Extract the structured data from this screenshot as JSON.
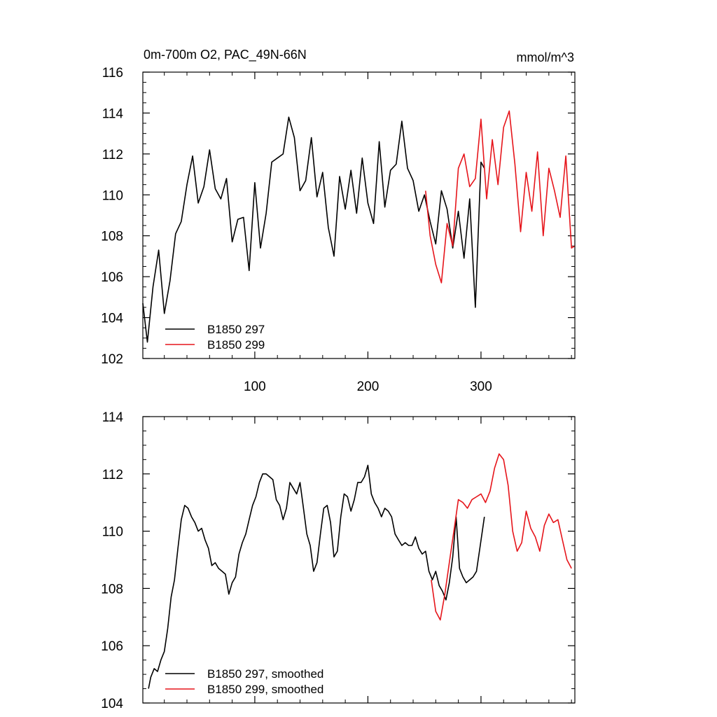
{
  "chart_data": [
    {
      "type": "line",
      "title": "0m-700m O2, PAC_49N-66N",
      "units": "mmol/m^3",
      "xlabel": "",
      "ylabel": "",
      "xlim": [
        1,
        383
      ],
      "ylim": [
        102,
        116
      ],
      "xticks": [
        100,
        200,
        300
      ],
      "yticks": [
        102,
        104,
        106,
        108,
        110,
        112,
        114,
        116
      ],
      "legend_position": "bottom-left",
      "series": [
        {
          "name": "B1850 297",
          "color": "#000000",
          "x": [
            1,
            5,
            10,
            15,
            20,
            25,
            30,
            35,
            40,
            45,
            50,
            55,
            60,
            65,
            70,
            75,
            80,
            85,
            90,
            95,
            100,
            105,
            110,
            115,
            120,
            125,
            130,
            135,
            140,
            145,
            150,
            155,
            160,
            165,
            170,
            175,
            180,
            185,
            190,
            195,
            200,
            205,
            210,
            215,
            220,
            225,
            230,
            235,
            240,
            245,
            250,
            255,
            260,
            265,
            270,
            275,
            280,
            285,
            290,
            295,
            300,
            303
          ],
          "values": [
            104.7,
            102.8,
            105.5,
            107.3,
            104.2,
            105.8,
            108.1,
            108.7,
            110.5,
            111.9,
            109.6,
            110.4,
            112.2,
            110.3,
            109.8,
            110.8,
            107.7,
            108.8,
            108.9,
            106.3,
            110.6,
            107.4,
            109.1,
            111.6,
            111.8,
            112.0,
            113.8,
            112.8,
            110.2,
            110.7,
            112.8,
            109.9,
            111.1,
            108.4,
            107.0,
            110.9,
            109.3,
            111.2,
            109.1,
            111.8,
            109.6,
            108.6,
            112.6,
            109.4,
            111.2,
            111.5,
            113.6,
            111.3,
            110.7,
            109.2,
            110.0,
            108.7,
            107.6,
            110.2,
            109.3,
            107.4,
            109.2,
            106.9,
            109.8,
            104.5,
            111.6,
            111.3
          ]
        },
        {
          "name": "B1850 299",
          "color": "#e6151b",
          "x": [
            251,
            255,
            260,
            265,
            270,
            275,
            280,
            285,
            290,
            295,
            300,
            305,
            310,
            315,
            320,
            325,
            330,
            335,
            340,
            345,
            350,
            355,
            360,
            365,
            370,
            375,
            380,
            383
          ],
          "values": [
            110.2,
            108.0,
            106.6,
            105.7,
            108.6,
            107.5,
            111.3,
            112.0,
            110.4,
            110.8,
            113.7,
            109.8,
            112.7,
            110.5,
            113.3,
            114.1,
            111.5,
            108.2,
            111.1,
            109.2,
            112.1,
            108.0,
            111.3,
            110.2,
            108.9,
            111.9,
            107.4,
            107.5
          ]
        }
      ]
    },
    {
      "type": "line",
      "title": "",
      "xlabel": "",
      "ylabel": "",
      "xlim": [
        1,
        383
      ],
      "ylim": [
        104,
        114
      ],
      "xticks": [
        100,
        200,
        300
      ],
      "yticks": [
        104,
        106,
        108,
        110,
        112,
        114
      ],
      "legend_position": "bottom-left",
      "series": [
        {
          "name": "B1850 297, smoothed",
          "color": "#000000",
          "x": [
            6,
            8,
            11,
            14,
            17,
            20,
            23,
            26,
            29,
            32,
            35,
            38,
            41,
            44,
            47,
            50,
            53,
            56,
            59,
            62,
            65,
            68,
            71,
            74,
            77,
            80,
            83,
            86,
            89,
            92,
            95,
            98,
            101,
            104,
            107,
            110,
            113,
            116,
            119,
            122,
            125,
            128,
            131,
            134,
            137,
            140,
            143,
            146,
            149,
            152,
            155,
            158,
            161,
            164,
            167,
            170,
            173,
            176,
            179,
            182,
            185,
            188,
            191,
            194,
            197,
            200,
            203,
            206,
            209,
            212,
            215,
            218,
            221,
            224,
            227,
            230,
            233,
            236,
            239,
            242,
            245,
            248,
            251,
            254,
            257,
            260,
            263,
            266,
            269,
            272,
            275,
            278,
            281,
            284,
            287,
            290,
            293,
            296,
            299,
            303
          ],
          "values": [
            104.5,
            104.9,
            105.2,
            105.1,
            105.5,
            105.8,
            106.6,
            107.7,
            108.3,
            109.4,
            110.4,
            110.9,
            110.8,
            110.5,
            110.3,
            110.0,
            110.1,
            109.7,
            109.4,
            108.8,
            108.9,
            108.7,
            108.6,
            108.5,
            107.8,
            108.2,
            108.4,
            109.2,
            109.6,
            109.9,
            110.4,
            110.9,
            111.2,
            111.7,
            112.0,
            112.0,
            111.9,
            111.8,
            111.1,
            110.9,
            110.4,
            110.8,
            111.7,
            111.5,
            111.3,
            111.7,
            110.8,
            109.9,
            109.5,
            108.6,
            108.9,
            109.9,
            110.8,
            110.9,
            110.3,
            109.1,
            109.3,
            110.5,
            111.3,
            111.2,
            110.7,
            111.1,
            111.7,
            111.7,
            111.9,
            112.3,
            111.3,
            111.0,
            110.8,
            110.5,
            110.8,
            110.7,
            110.5,
            109.9,
            109.7,
            109.5,
            109.6,
            109.5,
            109.5,
            109.8,
            109.4,
            109.2,
            109.3,
            108.6,
            108.3,
            108.6,
            108.1,
            107.9,
            107.6,
            108.2,
            109.1,
            110.5,
            108.7,
            108.4,
            108.2,
            108.3,
            108.4,
            108.6,
            109.4,
            110.5
          ]
        },
        {
          "name": "B1850 299, smoothed",
          "color": "#e6151b",
          "x": [
            256,
            260,
            264,
            268,
            272,
            276,
            280,
            284,
            288,
            292,
            296,
            300,
            304,
            308,
            312,
            316,
            320,
            324,
            328,
            332,
            336,
            340,
            344,
            348,
            352,
            356,
            360,
            364,
            368,
            372,
            376,
            380
          ],
          "values": [
            108.3,
            107.2,
            106.9,
            107.8,
            108.9,
            110.0,
            111.1,
            111.0,
            110.8,
            111.1,
            111.2,
            111.3,
            111.0,
            111.4,
            112.2,
            112.7,
            112.5,
            111.6,
            110.0,
            109.3,
            109.6,
            110.7,
            110.1,
            109.8,
            109.3,
            110.2,
            110.6,
            110.3,
            110.4,
            109.7,
            109.0,
            108.7
          ]
        }
      ]
    }
  ]
}
